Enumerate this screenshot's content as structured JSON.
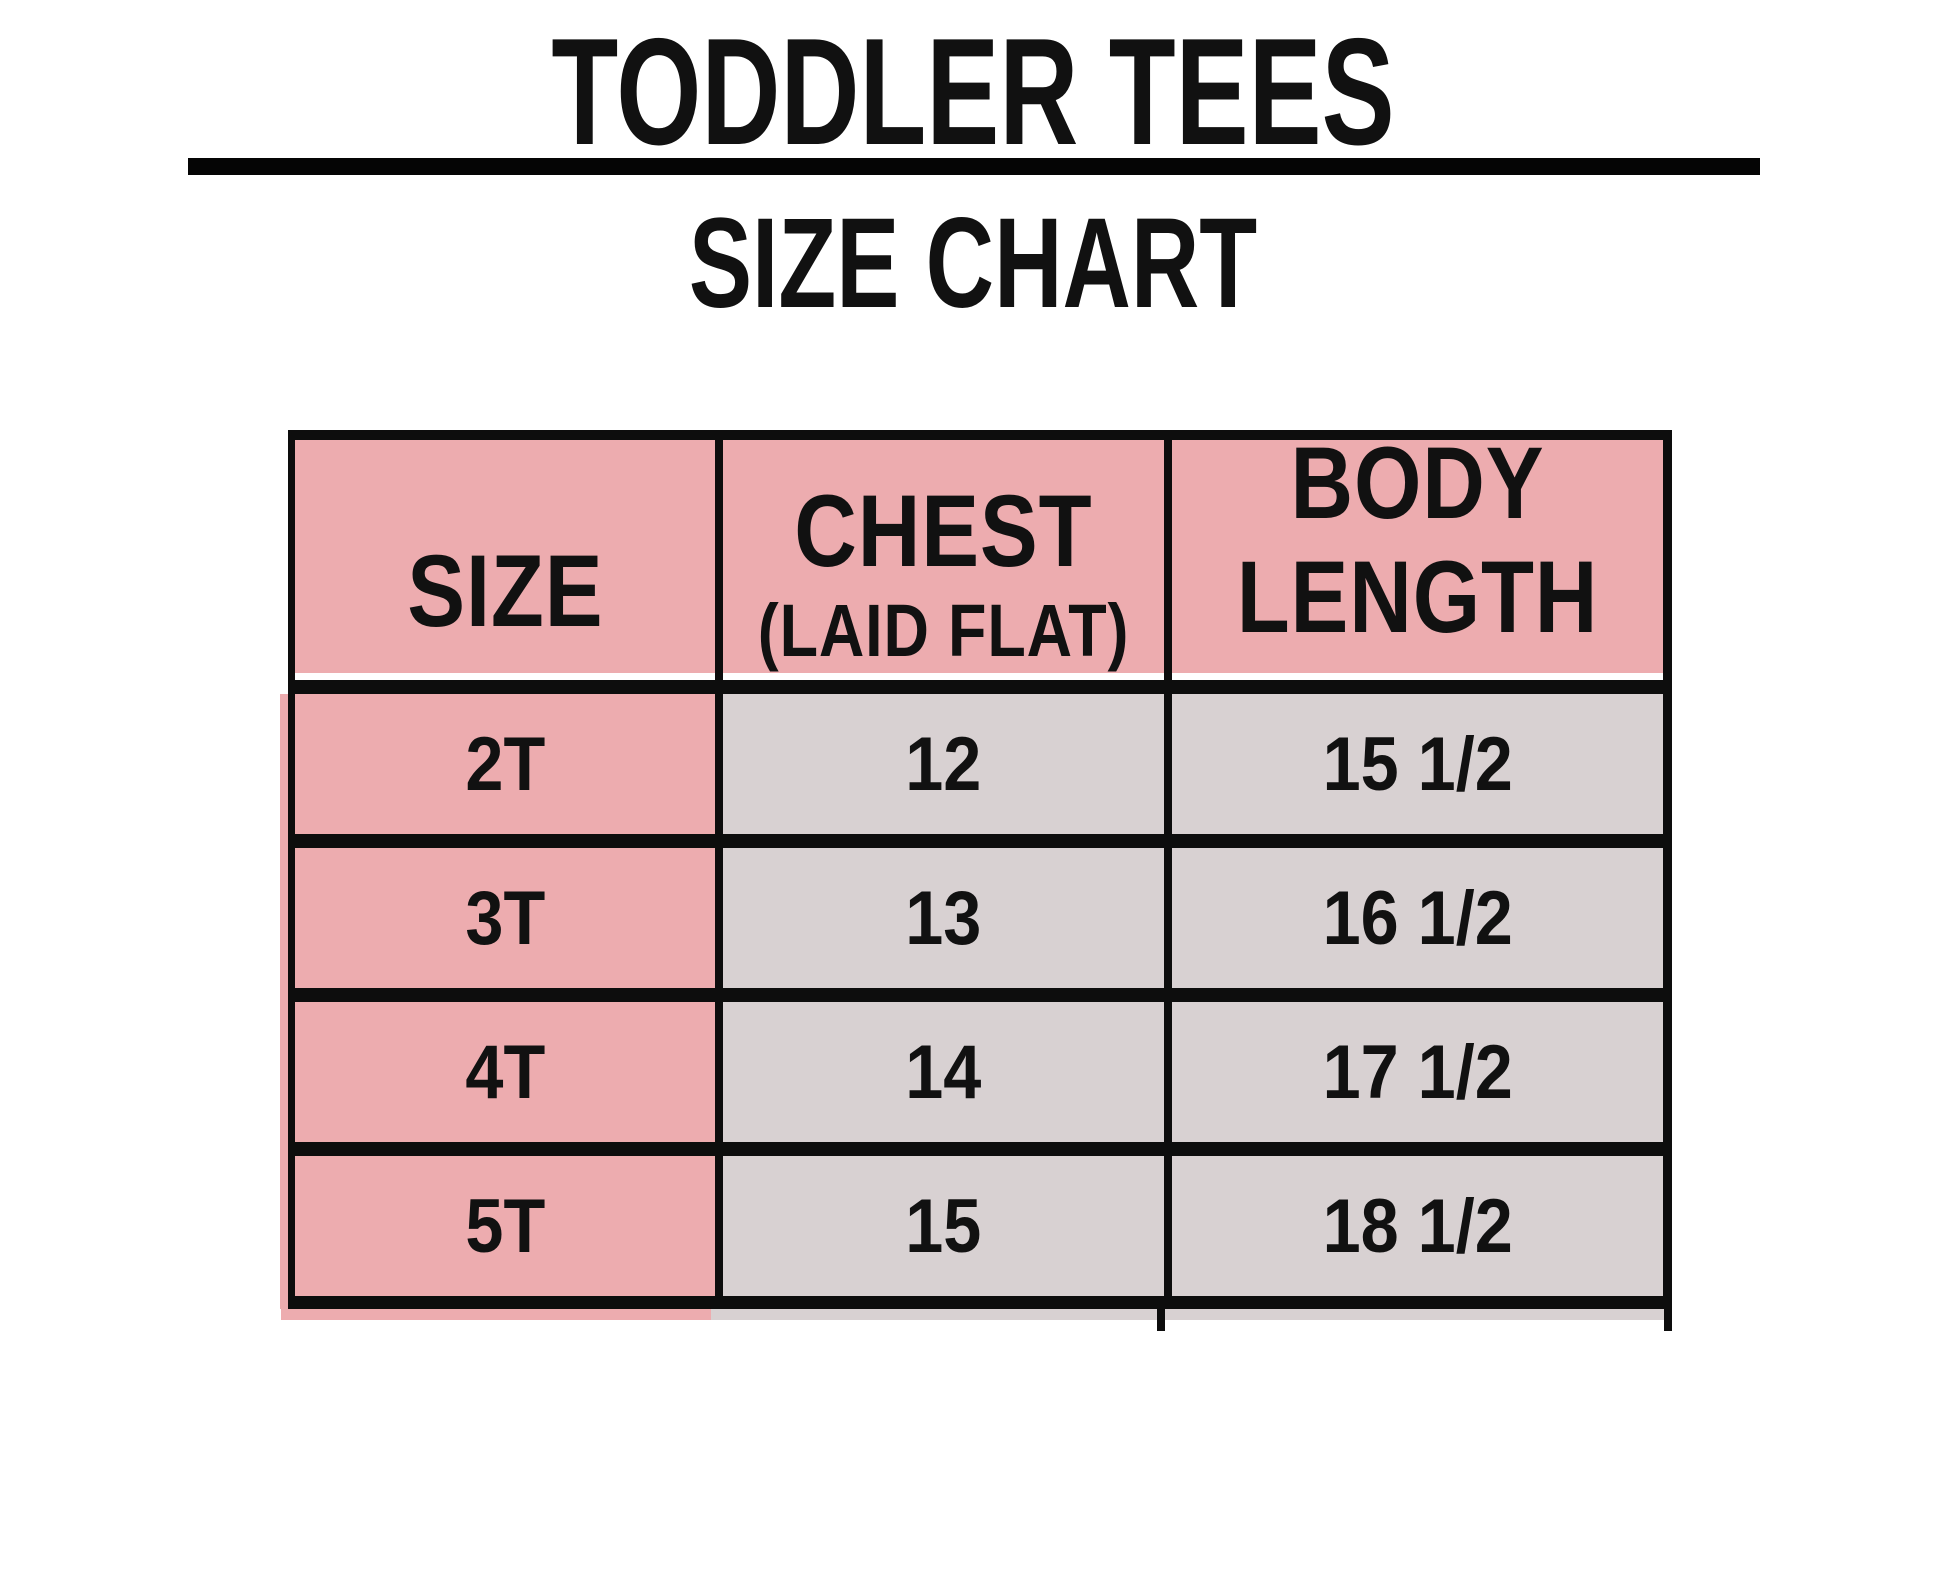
{
  "page": {
    "background": "#ffffff"
  },
  "colors": {
    "header_pink": "#EDACAF",
    "cell_gray": "#D8D1D2",
    "border_black": "#0D0D0D",
    "text_black": "#111111"
  },
  "chart_data": {
    "type": "table",
    "title": "TODDLER TEES",
    "subtitle": "SIZE CHART",
    "columns": [
      {
        "label": "SIZE",
        "sublabel": ""
      },
      {
        "label": "CHEST",
        "sublabel": "(LAID FLAT)"
      },
      {
        "label": "BODY LENGTH",
        "sublabel": ""
      }
    ],
    "rows": [
      {
        "size": "2T",
        "chest": "12",
        "body_length": "15 1/2"
      },
      {
        "size": "3T",
        "chest": "13",
        "body_length": "16 1/2"
      },
      {
        "size": "4T",
        "chest": "14",
        "body_length": "17 1/2"
      },
      {
        "size": "5T",
        "chest": "15",
        "body_length": "18 1/2"
      }
    ],
    "layout": {
      "grid": "on",
      "header_fill": "pink",
      "body_fill": "gray-with-pink-size-column"
    }
  }
}
